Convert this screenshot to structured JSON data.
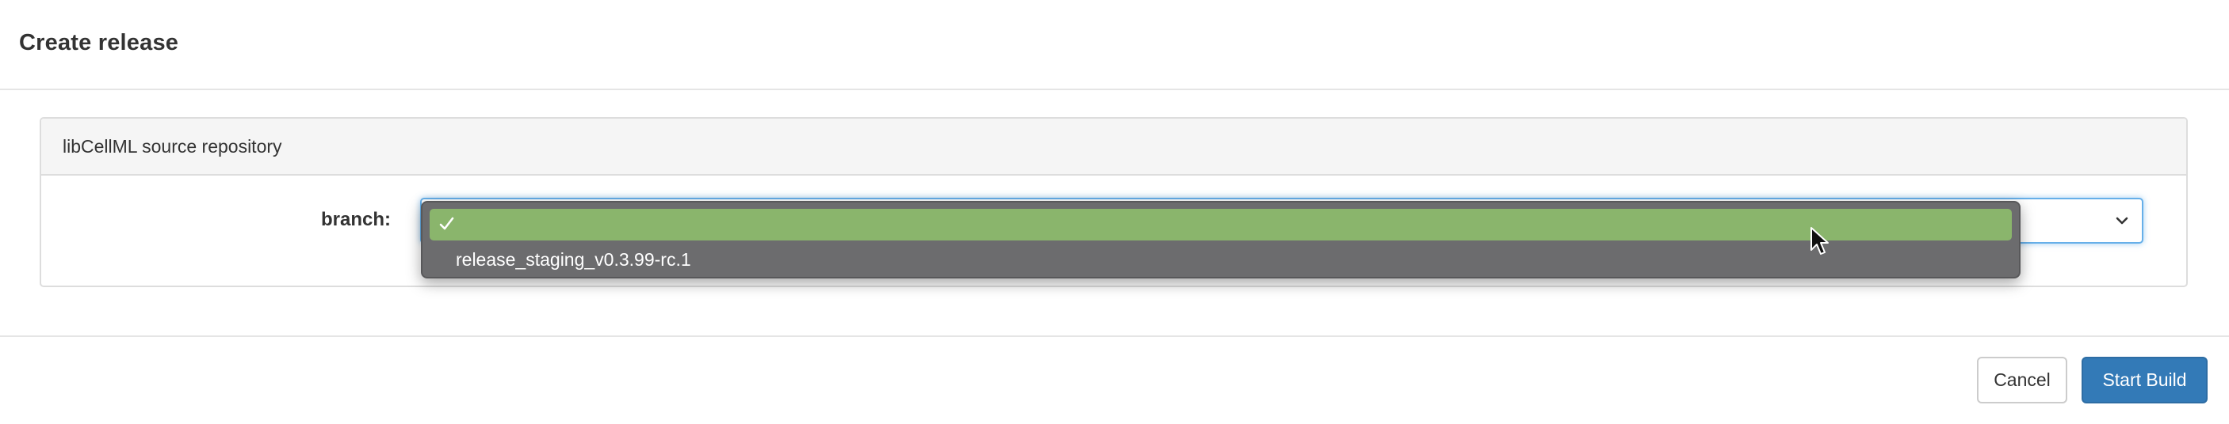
{
  "modal": {
    "title": "Create release"
  },
  "panel": {
    "heading": "libCellML source repository"
  },
  "form": {
    "branch_label": "branch:",
    "branch_select": {
      "selected_value": "",
      "options": [
        {
          "label": "",
          "selected": true
        },
        {
          "label": "release_staging_v0.3.99-rc.1",
          "selected": false
        }
      ]
    }
  },
  "footer": {
    "cancel_label": "Cancel",
    "start_build_label": "Start Build"
  },
  "colors": {
    "primary": "#337ab7",
    "selected_option": "#8ab56c",
    "dropdown_bg": "#6c6c6e",
    "focus_ring": "#66afe9"
  },
  "icons": {
    "chevron": "chevron-down-icon",
    "check": "check-icon",
    "cursor": "mouse-pointer-icon"
  }
}
